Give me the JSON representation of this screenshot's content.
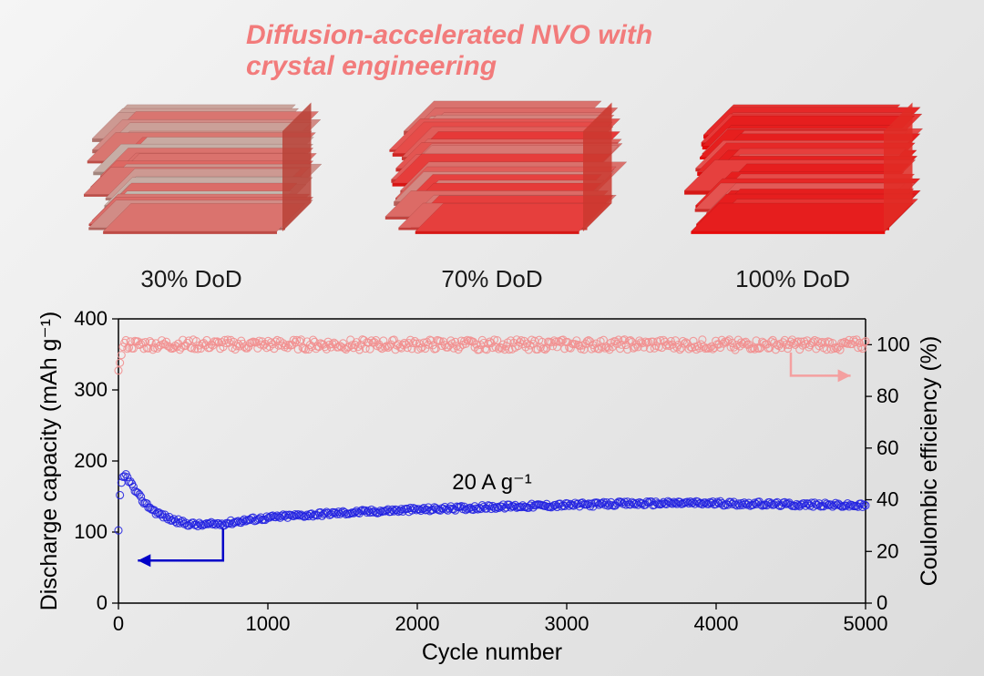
{
  "title": "Diffusion-accelerated NVO with crystal engineering",
  "crystals": [
    {
      "label": "30% DoD",
      "redness": 0.35
    },
    {
      "label": "70% DoD",
      "redness": 0.6
    },
    {
      "label": "100% DoD",
      "redness": 0.92
    }
  ],
  "chart": {
    "type": "scatter-dual-axis",
    "x_label": "Cycle number",
    "y_left_label": "Discharge capacity (mAh g⁻¹)",
    "y_right_label": "Coulombic efficiency (%)",
    "annotation": "20 A g⁻¹",
    "xlim": [
      0,
      5000
    ],
    "ylim_left": [
      0,
      400
    ],
    "ylim_right": [
      0,
      110
    ],
    "xticks": [
      0,
      1000,
      2000,
      3000,
      4000,
      5000
    ],
    "yticks_left": [
      0,
      100,
      200,
      300,
      400
    ],
    "yticks_right": [
      0,
      20,
      40,
      60,
      80,
      100
    ],
    "capacity_color": "#2020e0",
    "efficiency_color": "#f29090",
    "marker_size": 4,
    "marker_stroke": 1.1,
    "axis_color": "#000000",
    "left_arrow_color": "#0000c8",
    "right_arrow_color": "#f4a0a0",
    "capacity_series_baseline": [
      [
        0,
        100
      ],
      [
        10,
        150
      ],
      [
        25,
        175
      ],
      [
        50,
        180
      ],
      [
        80,
        170
      ],
      [
        120,
        155
      ],
      [
        180,
        140
      ],
      [
        250,
        128
      ],
      [
        350,
        118
      ],
      [
        450,
        112
      ],
      [
        550,
        110
      ],
      [
        700,
        112
      ],
      [
        900,
        118
      ],
      [
        1100,
        122
      ],
      [
        1400,
        126
      ],
      [
        1800,
        130
      ],
      [
        2200,
        133
      ],
      [
        2600,
        136
      ],
      [
        3000,
        138
      ],
      [
        3400,
        140
      ],
      [
        3800,
        141
      ],
      [
        4200,
        140
      ],
      [
        4500,
        139
      ],
      [
        4800,
        138
      ],
      [
        5000,
        137
      ]
    ],
    "capacity_noise": 3.0,
    "efficiency_mean": 100,
    "efficiency_noise": 2.0,
    "n_points": 500
  }
}
